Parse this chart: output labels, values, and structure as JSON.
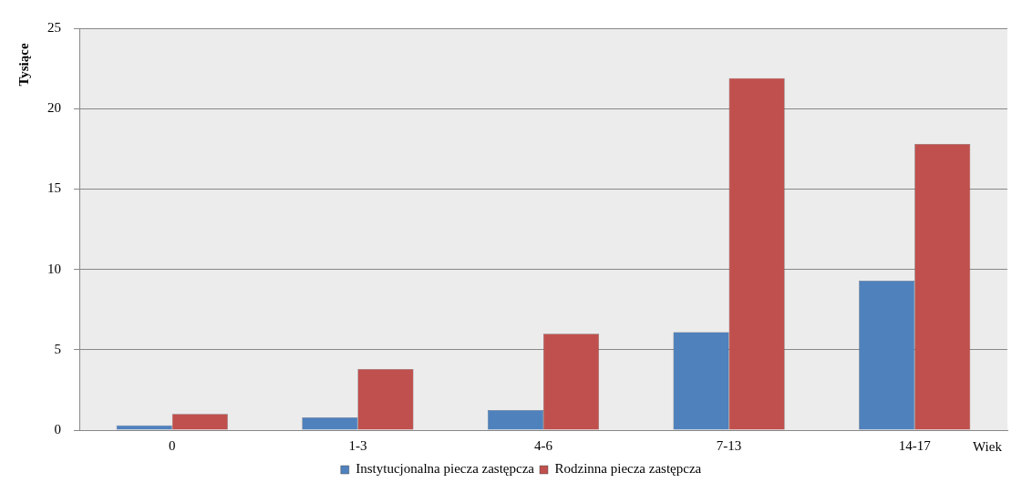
{
  "chart_data": {
    "type": "bar",
    "xlabel": "Wiek",
    "ylabel": "Tysiące",
    "categories": [
      "0",
      "1-3",
      "4-6",
      "7-13",
      "14-17"
    ],
    "series": [
      {
        "name": "Instytucjonalna piecza zastępcza",
        "color": "#4f81bd",
        "values": [
          0.3,
          0.8,
          1.25,
          6.1,
          9.3
        ]
      },
      {
        "name": "Rodzinna piecza zastępcza",
        "color": "#c0504d",
        "values": [
          1.0,
          3.8,
          6.0,
          21.9,
          17.8
        ]
      }
    ],
    "ylim": [
      0,
      25
    ],
    "yticks": [
      0,
      5,
      10,
      15,
      20,
      25
    ],
    "grid": "y",
    "legend": "bottom"
  }
}
